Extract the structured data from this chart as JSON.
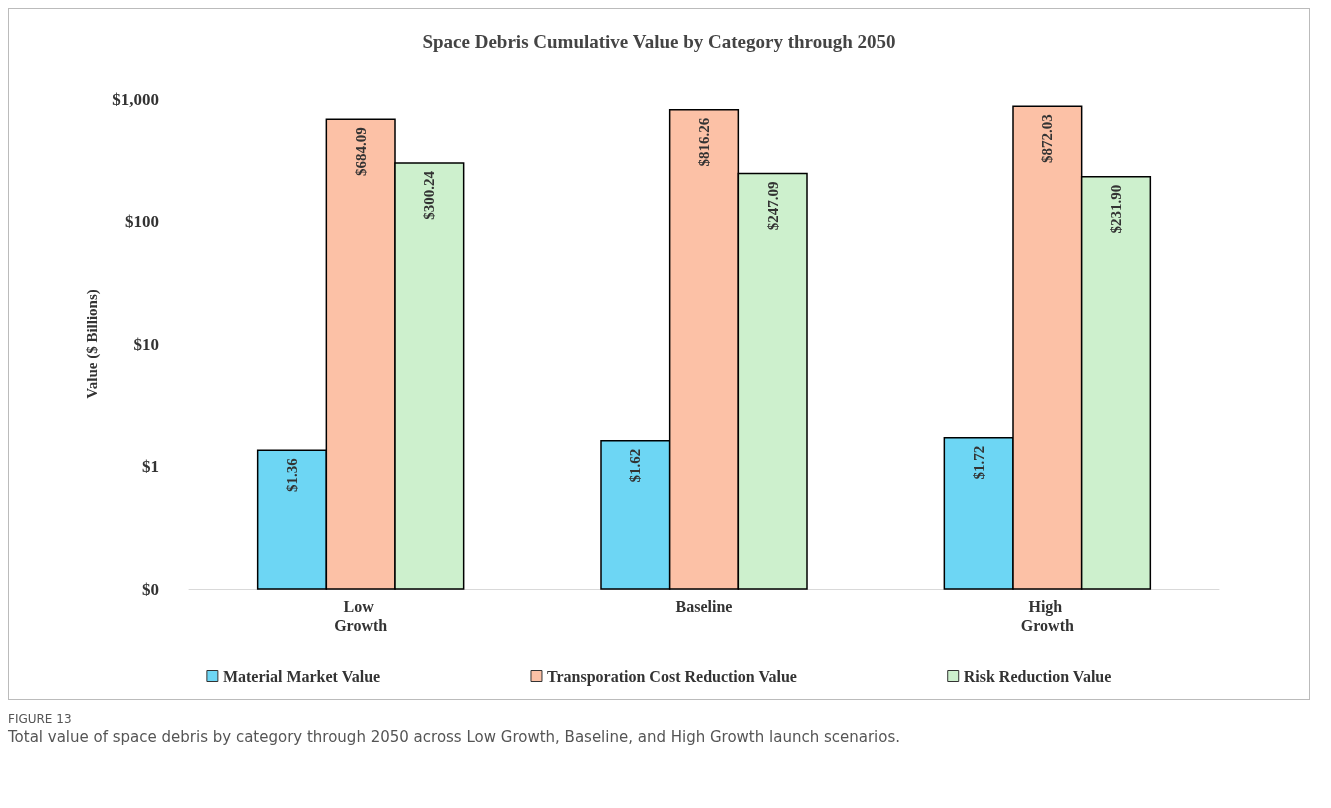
{
  "chart_data": {
    "type": "bar",
    "title": "Space Debris Cumulative Value by Category through 2050",
    "ylabel": "Value ($ Billions)",
    "categories": [
      "Low Growth",
      "Baseline",
      "High Growth"
    ],
    "series": [
      {
        "name": "Material Market Value",
        "color": "#6dd6f4",
        "values": [
          1.36,
          1.62,
          1.72
        ],
        "value_labels": [
          "$1.36",
          "$1.62",
          "$1.72"
        ]
      },
      {
        "name": "Transporation Cost Reduction Value",
        "color": "#fcc1a6",
        "values": [
          684.09,
          816.26,
          872.03
        ],
        "value_labels": [
          "$684.09",
          "$816.26",
          "$872.03"
        ]
      },
      {
        "name": "Risk Reduction Value",
        "color": "#cdf0cd",
        "values": [
          300.24,
          247.09,
          231.9
        ],
        "value_labels": [
          "$300.24",
          "$247.09",
          "$231.90"
        ]
      }
    ],
    "log": true,
    "ylim": [
      0.1,
      1000
    ],
    "yticks": [
      {
        "value": 0.1,
        "label": "$0"
      },
      {
        "value": 1,
        "label": "$1"
      },
      {
        "value": 10,
        "label": "$10"
      },
      {
        "value": 100,
        "label": "$100"
      },
      {
        "value": 1000,
        "label": "$1,000"
      }
    ],
    "grid": false,
    "legend": "bottom",
    "annotations": [
      "FIGURE 13",
      "Total value of space debris by category through 2050 across Low Growth, Baseline, and High Growth launch scenarios."
    ]
  }
}
